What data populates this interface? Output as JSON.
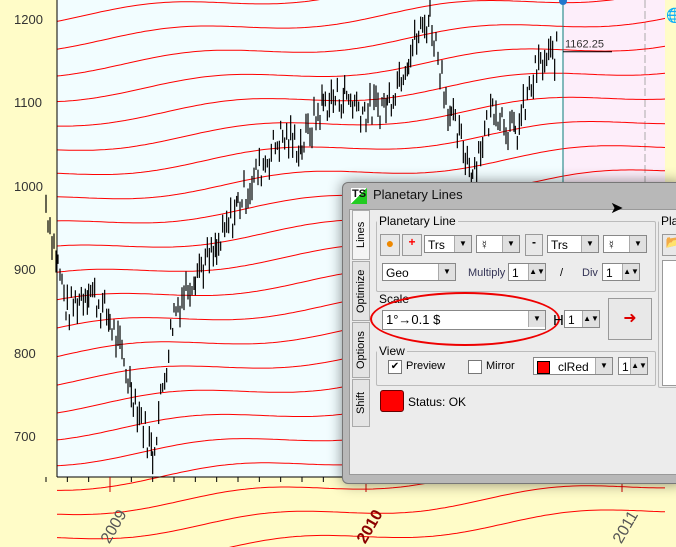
{
  "chart_data": {
    "type": "line",
    "y_ticks": [
      "1200",
      "1100",
      "1000",
      "900",
      "800",
      "700"
    ],
    "y_tick_values": [
      1200,
      1100,
      1000,
      900,
      800,
      700
    ],
    "x_ticks": [
      "2009",
      "2010",
      "2011"
    ],
    "ylim": [
      650,
      1225
    ],
    "x_range": [
      "2008-10",
      "2011-02"
    ],
    "series": [
      {
        "x": [
          "2008-10",
          "2008-11",
          "2008-12",
          "2009-01",
          "2009-02",
          "2009-03",
          "2009-04",
          "2009-05",
          "2009-06",
          "2009-07",
          "2009-08",
          "2009-09",
          "2009-10",
          "2009-11",
          "2009-12",
          "2010-01",
          "2010-02",
          "2010-03",
          "2010-04",
          "2010-05",
          "2010-06",
          "2010-07",
          "2010-08",
          "2010-09",
          "2010-10"
        ],
        "values": [
          980,
          850,
          880,
          840,
          760,
          680,
          850,
          900,
          920,
          980,
          1020,
          1060,
          1050,
          1100,
          1110,
          1090,
          1100,
          1160,
          1205,
          1080,
          1020,
          1100,
          1060,
          1140,
          1162
        ],
        "color": "#000000"
      }
    ],
    "last_price_label": "1162.25",
    "planetary_line_color": "#ff0000",
    "forecast_zone_color": "#fdeefa",
    "plot_bg": "#f2fdff",
    "highlight_year": "2010"
  },
  "dialog": {
    "title": "Planetary Lines",
    "logo": "TS",
    "tabs": [
      "Lines",
      "Optimize",
      "Options",
      "Shift"
    ],
    "planetary_line": {
      "legend": "Planetary Line",
      "plus": "+",
      "minus": "-",
      "sel1": "Trs",
      "planet1": "☿",
      "sel2": "Trs",
      "planet2": "☿",
      "coord": "Geo",
      "multiply_label": "Multiply",
      "multiply": "1",
      "slash": "/",
      "div_label": "Div",
      "div": "1"
    },
    "scale": {
      "legend": "Scale",
      "value": "1°→0.1 $",
      "h_label": "H",
      "h": "1"
    },
    "view": {
      "legend": "View",
      "preview": "Preview",
      "preview_checked": true,
      "mirror": "Mirror",
      "mirror_checked": false,
      "color": "clRed",
      "color_hex": "#ff0000",
      "width": "1"
    },
    "status": "Status: OK",
    "right_panel_legend": "Plan"
  }
}
